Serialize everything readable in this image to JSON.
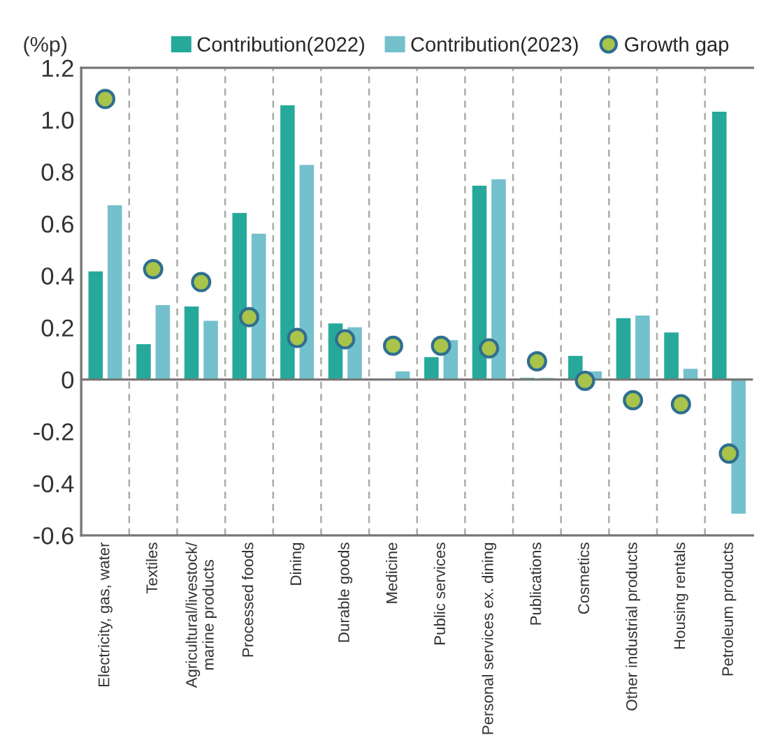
{
  "chart_data": {
    "type": "bar",
    "ylabel": "(%p)",
    "categories": [
      "Electricity, gas, water",
      "Textiles",
      "Agricultural/livestock/\nmarine products",
      "Processed foods",
      "Dining",
      "Durable goods",
      "Medicine",
      "Public services",
      "Personal services ex. dining",
      "Publications",
      "Cosmetics",
      "Other industrial products",
      "Housing rentals",
      "Petroleum products"
    ],
    "series": [
      {
        "name": "Contribution(2022)",
        "color": "#26a99b",
        "values": [
          0.42,
          0.14,
          0.285,
          0.645,
          1.06,
          0.22,
          null,
          0.09,
          0.75,
          0.01,
          0.095,
          0.24,
          0.185,
          1.035
        ]
      },
      {
        "name": "Contribution(2023)",
        "color": "#74c0cc",
        "values": [
          0.675,
          0.29,
          0.23,
          0.565,
          0.83,
          0.205,
          0.035,
          0.155,
          0.775,
          0.01,
          0.035,
          0.25,
          0.045,
          -0.52
        ]
      },
      {
        "name": "Growth gap",
        "type": "scatter",
        "color": "#a8c44a",
        "values": [
          1.08,
          0.425,
          0.375,
          0.24,
          0.16,
          0.155,
          0.13,
          0.13,
          0.12,
          0.07,
          -0.005,
          -0.08,
          -0.095,
          -0.285
        ]
      }
    ],
    "ylim": [
      -0.6,
      1.2
    ],
    "yticks": [
      {
        "value": -0.6,
        "label": "-0.6"
      },
      {
        "value": -0.4,
        "label": "-0.4"
      },
      {
        "value": -0.2,
        "label": "-0.2"
      },
      0,
      {
        "value": 0.2,
        "label": "0.2"
      },
      {
        "value": 0.4,
        "label": "0.4"
      },
      {
        "value": 0.6,
        "label": "0.6"
      },
      {
        "value": 0.8,
        "label": "0.8"
      },
      {
        "value": 1.0,
        "label": "1.0"
      },
      {
        "value": 1.2,
        "label": "1.2"
      }
    ],
    "grid": "x",
    "legend": "top",
    "marker": "circle"
  }
}
